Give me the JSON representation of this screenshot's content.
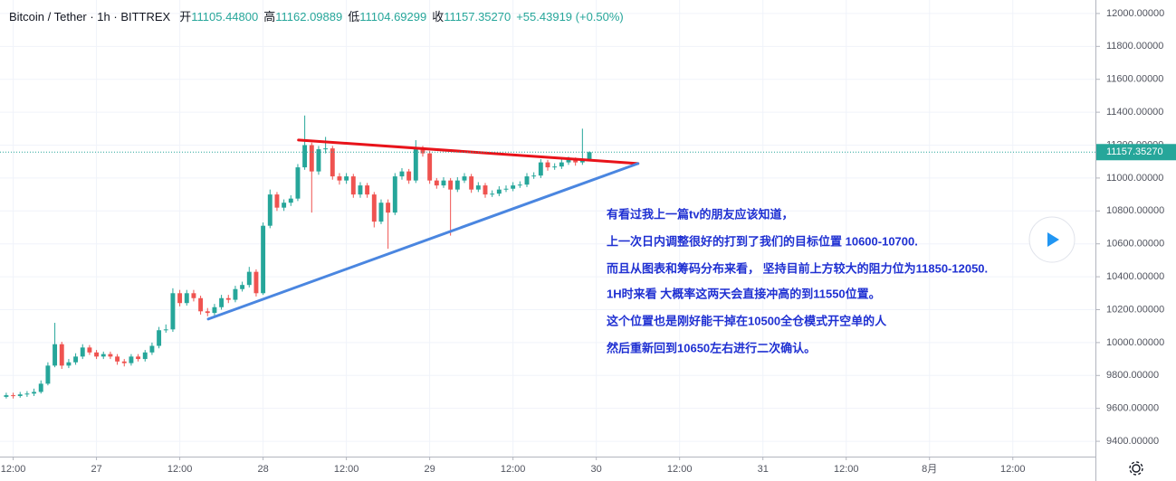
{
  "header": {
    "symbol": "Bitcoin / Tether · 1h · BITTREX",
    "fields": [
      {
        "name": "开",
        "value": "11105.44800"
      },
      {
        "name": "高",
        "value": "11162.09889"
      },
      {
        "name": "低",
        "value": "11104.69299"
      },
      {
        "name": "收",
        "value": "11157.35270"
      }
    ],
    "change": "+55.43919 (+0.50%)"
  },
  "chart_data": {
    "type": "candlestick",
    "open": [
      9670,
      9680,
      9675,
      9685,
      9690,
      9700,
      9750,
      9860,
      9990,
      9860,
      9880,
      9915,
      9970,
      9940,
      9915,
      9930,
      9915,
      9885,
      9875,
      9915,
      9900,
      9940,
      9980,
      10075,
      10080,
      10300,
      10240,
      10300,
      10270,
      10190,
      10180,
      10215,
      10270,
      10260,
      10325,
      10350,
      10430,
      10300,
      10710,
      10900,
      10820,
      10850,
      10875,
      11065,
      11200,
      11040,
      11175,
      11180,
      11010,
      10985,
      11010,
      10900,
      10955,
      10900,
      10735,
      10850,
      10790,
      11010,
      11040,
      10985,
      11175,
      11150,
      10985,
      10955,
      10985,
      10930,
      10985,
      11010,
      10930,
      10955,
      10900,
      10905,
      10930,
      10935,
      10955,
      10960,
      11010,
      11015,
      11095,
      11065,
      11070,
      11095,
      11110,
      11095,
      11105.448
    ],
    "high": [
      9695,
      9695,
      9700,
      9705,
      9720,
      9770,
      9880,
      10120,
      10005,
      9900,
      9935,
      9990,
      9985,
      9955,
      9945,
      9945,
      9930,
      9900,
      9930,
      9930,
      9955,
      10000,
      10095,
      10110,
      10330,
      10320,
      10320,
      10320,
      10285,
      10210,
      10235,
      10290,
      10290,
      10345,
      10370,
      10460,
      10445,
      10730,
      10930,
      10915,
      10870,
      10895,
      11085,
      11380,
      11215,
      11195,
      11250,
      11195,
      11030,
      11030,
      11025,
      10975,
      10970,
      10915,
      10870,
      10870,
      11030,
      11060,
      11055,
      11230,
      11195,
      11165,
      11000,
      11005,
      11000,
      11005,
      11030,
      11025,
      10975,
      10970,
      10925,
      10950,
      10955,
      10975,
      10980,
      11030,
      11035,
      11115,
      11110,
      11090,
      11115,
      11130,
      11125,
      11300,
      11162.09889
    ],
    "low": [
      9660,
      9660,
      9665,
      9670,
      9675,
      9690,
      9740,
      9850,
      9840,
      9845,
      9865,
      9900,
      9925,
      9900,
      9900,
      9900,
      9865,
      9855,
      9860,
      9885,
      9885,
      9925,
      9965,
      10060,
      10065,
      10220,
      10225,
      10250,
      10170,
      10160,
      10165,
      10200,
      10240,
      10245,
      10310,
      10335,
      10280,
      10290,
      10695,
      10800,
      10800,
      10830,
      10860,
      11050,
      10790,
      11020,
      11150,
      10990,
      10960,
      10965,
      10880,
      10880,
      10880,
      10700,
      10720,
      10570,
      10775,
      10990,
      10965,
      10970,
      11130,
      10965,
      10935,
      10940,
      10650,
      10915,
      10970,
      10910,
      10915,
      10880,
      10885,
      10890,
      10915,
      10920,
      10940,
      10945,
      10995,
      11000,
      11045,
      11050,
      11055,
      11080,
      11075,
      11080,
      11104.69299
    ],
    "close": [
      9680,
      9675,
      9685,
      9690,
      9700,
      9750,
      9860,
      9990,
      9860,
      9880,
      9915,
      9970,
      9940,
      9915,
      9930,
      9915,
      9885,
      9875,
      9915,
      9900,
      9940,
      9980,
      10075,
      10080,
      10300,
      10240,
      10300,
      10270,
      10190,
      10180,
      10215,
      10270,
      10260,
      10325,
      10350,
      10430,
      10300,
      10710,
      10900,
      10820,
      10850,
      10875,
      11065,
      11200,
      11040,
      11175,
      11180,
      11010,
      10985,
      11010,
      10900,
      10955,
      10900,
      10735,
      10850,
      10790,
      11010,
      11040,
      10985,
      11175,
      11150,
      10985,
      10955,
      10985,
      10930,
      10985,
      11010,
      10930,
      10955,
      10900,
      10905,
      10930,
      10935,
      10955,
      10960,
      11010,
      11015,
      11095,
      11065,
      11070,
      11095,
      11110,
      11095,
      11105.448,
      11157.3527
    ],
    "up_color": "#26a69a",
    "down_color": "#ef5350",
    "last_price_label": "11157.35270",
    "xlim": [
      -0.9,
      156.9
    ],
    "xticks": [
      {
        "value": 1,
        "label": "12:00"
      },
      {
        "value": 13,
        "label": "27"
      },
      {
        "value": 25,
        "label": "12:00"
      },
      {
        "value": 37,
        "label": "28"
      },
      {
        "value": 49,
        "label": "12:00"
      },
      {
        "value": 61,
        "label": "29"
      },
      {
        "value": 73,
        "label": "12:00"
      },
      {
        "value": 85,
        "label": "30"
      },
      {
        "value": 97,
        "label": "12:00"
      },
      {
        "value": 109,
        "label": "31"
      },
      {
        "value": 121,
        "label": "12:00"
      },
      {
        "value": 133,
        "label": "8月"
      },
      {
        "value": 145,
        "label": "12:00"
      }
    ],
    "ylim": [
      9307,
      12082
    ],
    "yticks": [
      {
        "value": 9400,
        "label": "9400.00000"
      },
      {
        "value": 9600,
        "label": "9600.00000"
      },
      {
        "value": 9800,
        "label": "9800.00000"
      },
      {
        "value": 10000,
        "label": "10000.00000"
      },
      {
        "value": 10200,
        "label": "10200.00000"
      },
      {
        "value": 10400,
        "label": "10400.00000"
      },
      {
        "value": 10600,
        "label": "10600.00000"
      },
      {
        "value": 10800,
        "label": "10800.00000"
      },
      {
        "value": 11000,
        "label": "11000.00000"
      },
      {
        "value": 11200,
        "label": "11200.00000"
      },
      {
        "value": 11400,
        "label": "11400.00000"
      },
      {
        "value": 11600,
        "label": "11600.00000"
      },
      {
        "value": 11800,
        "label": "11800.00000"
      },
      {
        "value": 12000,
        "label": "12000.00000"
      }
    ],
    "grid": true,
    "trendlines": [
      {
        "color": "#e8131a",
        "x": [
          42.1,
          91.0
        ],
        "y": [
          11231,
          11088
        ]
      },
      {
        "color": "#4a86e0",
        "x": [
          29.1,
          91.0
        ],
        "y": [
          10143,
          11088
        ]
      }
    ],
    "annotations": [
      "有看过我上一篇tv的朋友应该知道，",
      "上一次日内调整很好的打到了我们的目标位置 10600-10700.",
      "而且从图表和筹码分布来看， 坚持目前上方较大的阻力位为11850-12050.",
      "1H时来看 大概率这两天会直接冲高的到11550位置。",
      "这个位置也是刚好能干掉在10500全仓模式开空单的人",
      "然后重新回到10650左右进行二次确认。"
    ]
  }
}
